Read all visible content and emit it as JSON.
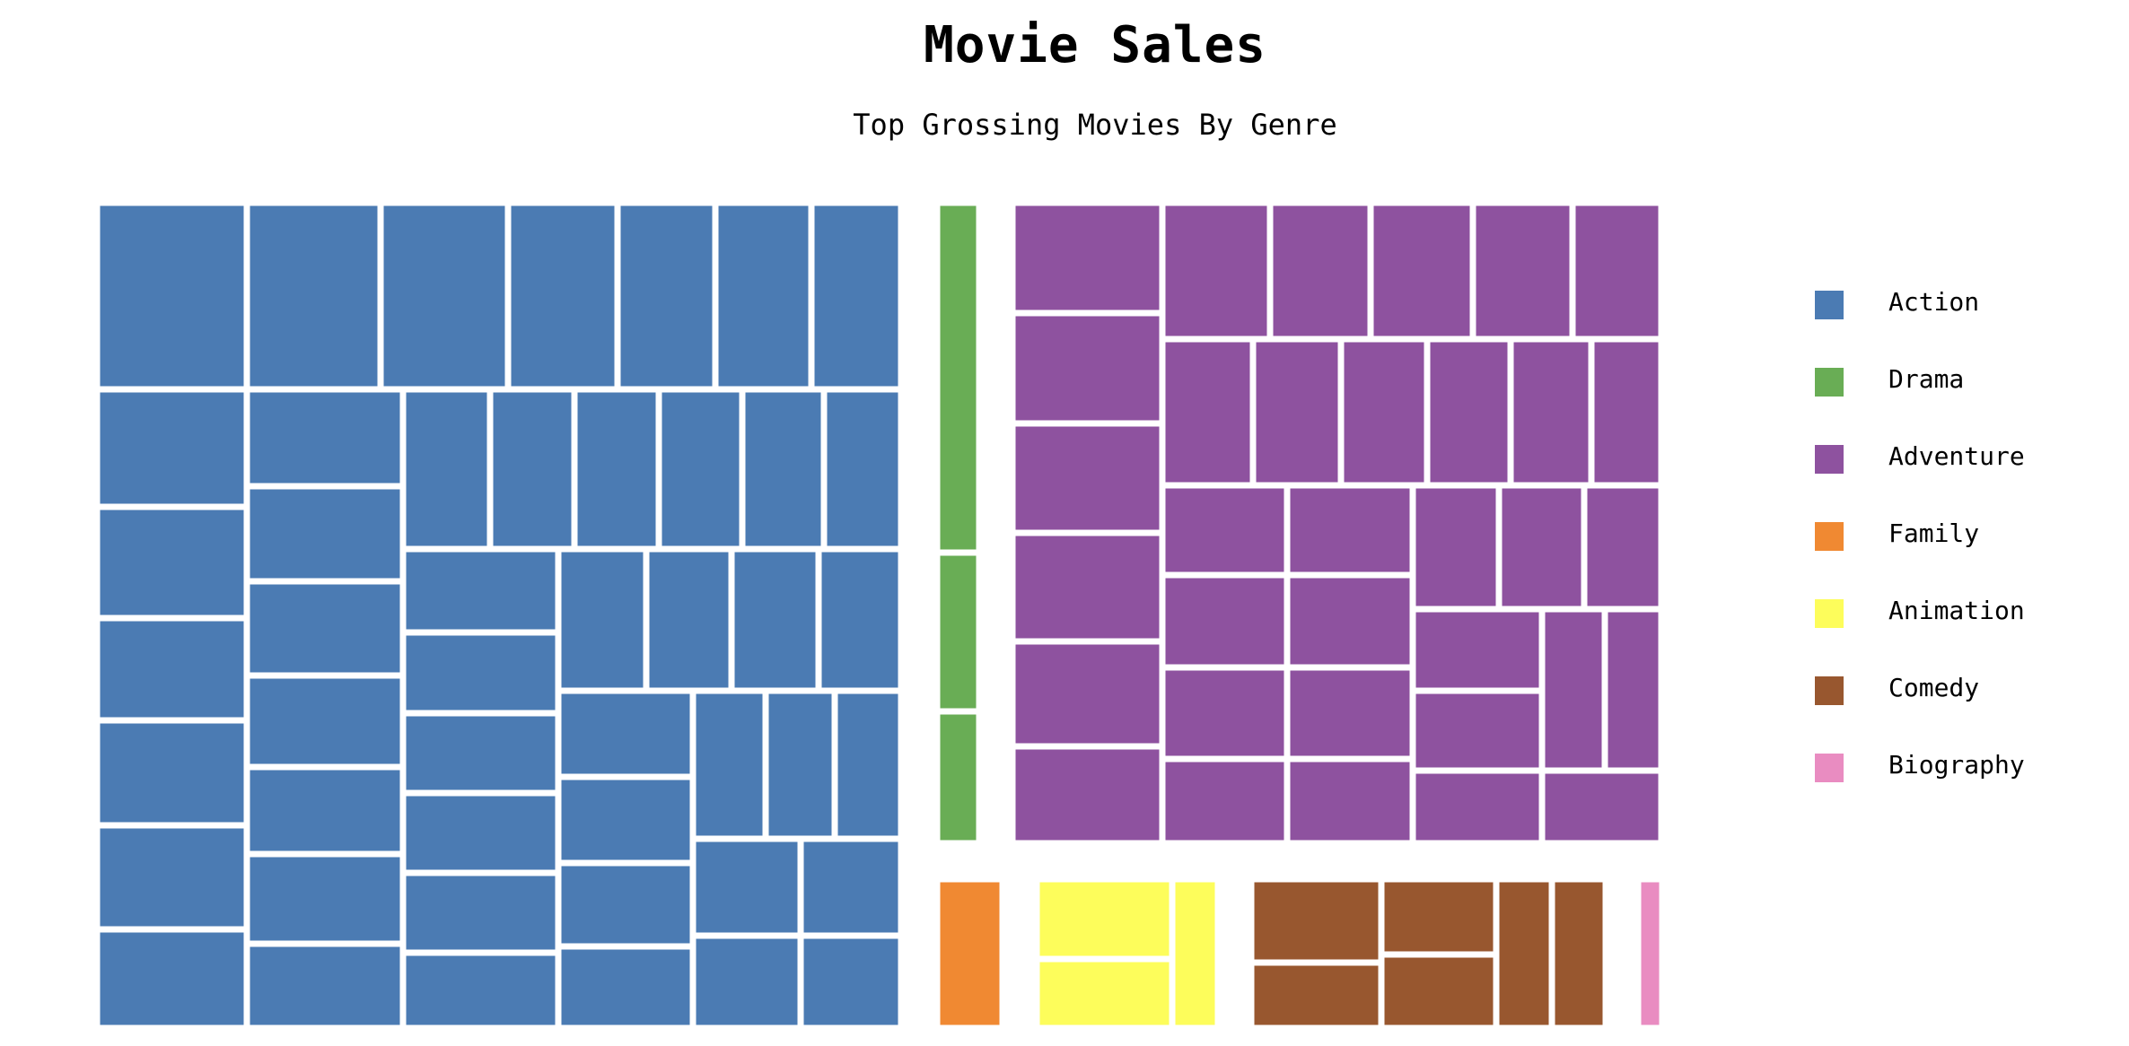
{
  "chart_data": {
    "type": "treemap",
    "title": "Movie Sales",
    "subtitle": "Top Grossing Movies By Genre",
    "legend_position": "right",
    "categories": [
      {
        "name": "Action",
        "color": "#4b7bb3"
      },
      {
        "name": "Drama",
        "color": "#69ad55"
      },
      {
        "name": "Adventure",
        "color": "#8e529f"
      },
      {
        "name": "Family",
        "color": "#f08932"
      },
      {
        "name": "Animation",
        "color": "#fdfd5b"
      },
      {
        "name": "Comedy",
        "color": "#98572f"
      },
      {
        "name": "Biography",
        "color": "#e98cc1"
      }
    ]
  }
}
